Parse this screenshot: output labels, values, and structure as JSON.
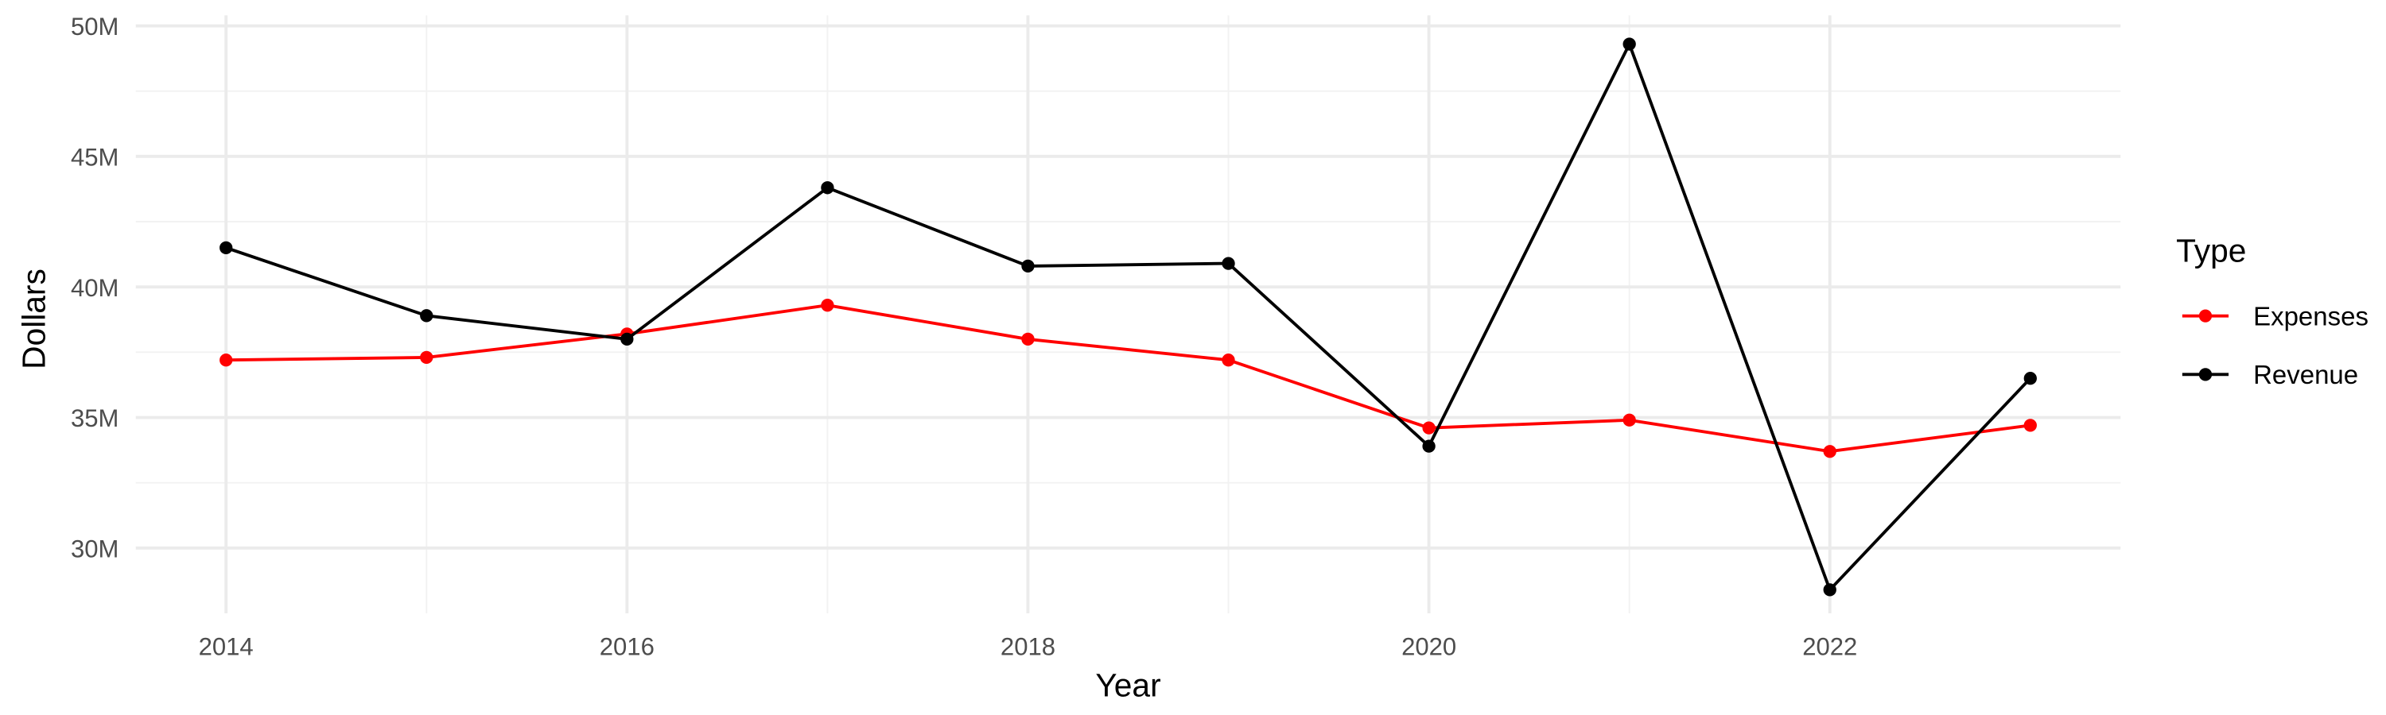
{
  "chart_data": {
    "type": "line",
    "x_label": "Year",
    "y_label": "Dollars",
    "legend_title": "Type",
    "legend": "right",
    "grid": true,
    "x": [
      2014,
      2015,
      2016,
      2017,
      2018,
      2019,
      2020,
      2021,
      2022,
      2023
    ],
    "series": [
      {
        "name": "Expenses",
        "color": "#ff0000",
        "values": [
          37200000,
          37300000,
          38200000,
          39300000,
          38000000,
          37200000,
          34600000,
          34900000,
          33700000,
          34700000
        ]
      },
      {
        "name": "Revenue",
        "color": "#000000",
        "values": [
          41500000,
          38900000,
          38000000,
          43800000,
          40800000,
          40900000,
          33900000,
          49300000,
          28400000,
          36500000
        ]
      }
    ],
    "xlim": [
      2013.55,
      2023.45
    ],
    "xticks": [
      2014,
      2016,
      2018,
      2020,
      2022
    ],
    "ylim": [
      27500000,
      50400000
    ],
    "yticks": [
      {
        "value": 30000000,
        "label": "30M"
      },
      {
        "value": 35000000,
        "label": "35M"
      },
      {
        "value": 40000000,
        "label": "40M"
      },
      {
        "value": 45000000,
        "label": "45M"
      },
      {
        "value": 50000000,
        "label": "50M"
      }
    ]
  }
}
